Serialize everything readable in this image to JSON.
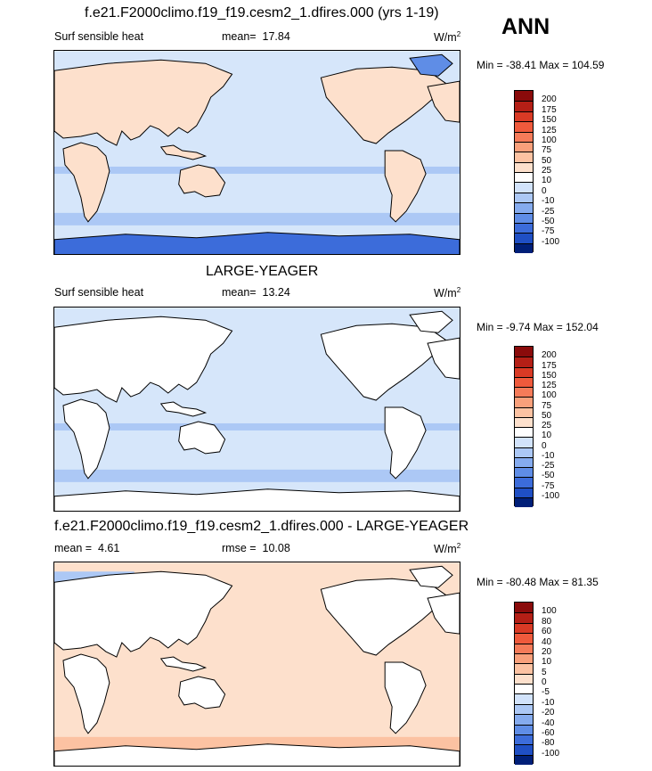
{
  "season": "ANN",
  "colors": {
    "warm": [
      "#fde0cc",
      "#fcc2a2",
      "#f9a07b",
      "#f57b59",
      "#ef5a3c",
      "#d93a25",
      "#b41f16",
      "#8a0b0b"
    ],
    "cool": [
      "#d2e3fb",
      "#acc8f5",
      "#85abee",
      "#5f8de6",
      "#3c6cda",
      "#1f4fc4",
      "#0b33a0",
      "#001f78"
    ],
    "ocean_neutral": "#d6e6fa",
    "land": "#ffffff"
  },
  "panels": [
    {
      "title": "f.e21.F2000climo.f19_f19.cesm2_1.dfires.000 (yrs 1-19)",
      "variable": "Surf sensible heat",
      "stat1_label": "mean=",
      "stat1_value": "17.84",
      "units": "W/m",
      "units_exp": "2",
      "minmax": "Min = -38.41 Max = 104.59",
      "colorbar_levels": [
        "200",
        "175",
        "150",
        "125",
        "100",
        "75",
        "50",
        "25",
        "10",
        "0",
        "-10",
        "-25",
        "-50",
        "-75",
        "-100"
      ],
      "land_mode": "filled"
    },
    {
      "title": "LARGE-YEAGER",
      "variable": "Surf sensible heat",
      "stat1_label": "mean=",
      "stat1_value": "13.24",
      "units": "W/m",
      "units_exp": "2",
      "minmax": "Min =  -9.74 Max = 152.04",
      "colorbar_levels": [
        "200",
        "175",
        "150",
        "125",
        "100",
        "75",
        "50",
        "25",
        "10",
        "0",
        "-10",
        "-25",
        "-50",
        "-75",
        "-100"
      ],
      "land_mode": "white"
    },
    {
      "title": "f.e21.F2000climo.f19_f19.cesm2_1.dfires.000 - LARGE-YEAGER",
      "stat0_label": "mean =",
      "stat0_value": "4.61",
      "stat1_label": "rmse =",
      "stat1_value": "10.08",
      "units": "W/m",
      "units_exp": "2",
      "minmax": "Min = -80.48 Max =  81.35",
      "colorbar_levels": [
        "100",
        "80",
        "60",
        "40",
        "20",
        "10",
        "5",
        "0",
        "-5",
        "-10",
        "-20",
        "-40",
        "-60",
        "-80",
        "-100"
      ],
      "land_mode": "white"
    }
  ]
}
